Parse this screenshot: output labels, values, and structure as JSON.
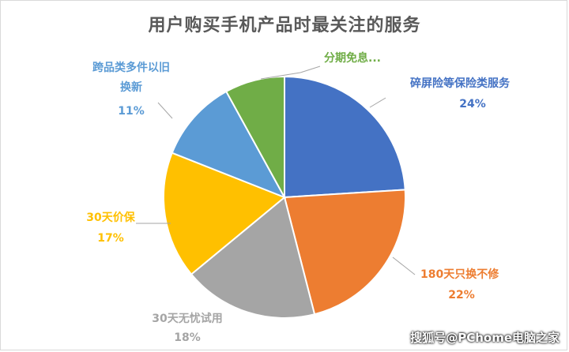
{
  "chart_data": {
    "type": "pie",
    "title": "用户购买手机产品时最关注的服务",
    "slices": [
      {
        "label": "碎屏险等保险类服务",
        "value": 24,
        "pct_label": "24%",
        "color": "#4472c4"
      },
      {
        "label": "180天只换不修",
        "value": 22,
        "pct_label": "22%",
        "color": "#ed7d31"
      },
      {
        "label": "30天无忧试用",
        "value": 18,
        "pct_label": "18%",
        "color": "#a5a5a5"
      },
      {
        "label": "30天价保",
        "value": 17,
        "pct_label": "17%",
        "color": "#ffc000"
      },
      {
        "label": "跨品类多件以旧换新",
        "value": 11,
        "pct_label": "11%",
        "color": "#5b9bd5"
      },
      {
        "label": "分期免息...",
        "value": 8,
        "pct_label": "",
        "color": "#70ad47"
      }
    ]
  },
  "watermark": "搜狐号@PChome电脑之家"
}
